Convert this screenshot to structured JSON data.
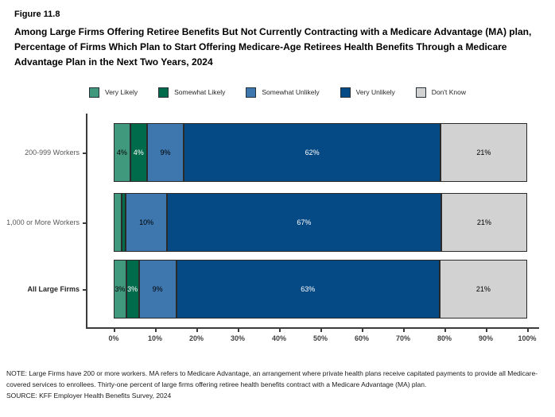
{
  "header": {
    "figure_label": "Figure 11.8",
    "title": "Among Large Firms Offering Retiree Benefits But Not Currently Contracting with a Medicare Advantage (MA) plan, Percentage of Firms Which Plan to Start Offering Medicare-Age Retirees Health Benefits Through a Medicare Advantage Plan in the Next Two Years, 2024"
  },
  "chart_data": {
    "type": "bar",
    "orientation": "horizontal",
    "stacked": true,
    "categories": [
      "200-999 Workers",
      "1,000 or More Workers",
      "All Large Firms"
    ],
    "series": [
      {
        "name": "Very Likely",
        "color": "#41997D",
        "label_color": "#000000",
        "values": [
          4,
          2,
          3
        ],
        "labels": [
          "4%",
          "",
          "3%"
        ]
      },
      {
        "name": "Somewhat Likely",
        "color": "#006B4A",
        "label_color": "#ffffff",
        "values": [
          4,
          1,
          3
        ],
        "labels": [
          "4%",
          "",
          "3%"
        ]
      },
      {
        "name": "Somewhat Unlikely",
        "color": "#3E76AE",
        "label_color": "#000000",
        "values": [
          9,
          10,
          9
        ],
        "labels": [
          "9%",
          "10%",
          "9%"
        ]
      },
      {
        "name": "Very Unlikely",
        "color": "#064A85",
        "label_color": "#ffffff",
        "values": [
          62,
          67,
          63
        ],
        "labels": [
          "62%",
          "67%",
          "63%"
        ]
      },
      {
        "name": "Don't Know",
        "color": "#D2D2D2",
        "label_color": "#000000",
        "values": [
          21,
          21,
          21
        ],
        "labels": [
          "21%",
          "21%",
          "21%"
        ]
      }
    ],
    "x_axis": {
      "min": 0,
      "max": 100,
      "tick_labels": [
        "0%",
        "10%",
        "20%",
        "30%",
        "40%",
        "50%",
        "60%",
        "70%",
        "80%",
        "90%",
        "100%"
      ]
    },
    "legend_position": "top",
    "grid": false,
    "title": "Percentage of Firms Which Plan to Start Offering Medicare-Age Retirees Health Benefits Through a Medicare Advantage Plan in the Next Two Years, 2024"
  },
  "footer": {
    "note": "NOTE: Large Firms have 200 or more workers.  MA refers to Medicare Advantage, an arrangement where private health plans receive capitated payments to provide all Medicare-covered services to enrollees.  Thirty-one percent of large firms offering retiree health benefits contract with a Medicare Advantage (MA) plan.",
    "source": "SOURCE: KFF Employer Health Benefits Survey, 2024"
  }
}
